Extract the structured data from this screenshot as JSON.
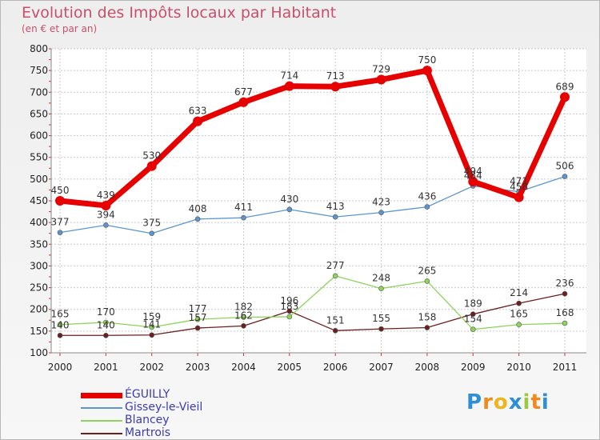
{
  "title": "Evolution des Impôts locaux par Habitant",
  "subtitle": "(en € et par an)",
  "logo": {
    "letters": [
      "P",
      "r",
      "o",
      "x",
      "i",
      "t",
      "i"
    ],
    "colors": [
      "#2e8fd6",
      "#f08a1c",
      "#f0b51c",
      "#2e8fd6",
      "#9acb3c",
      "#f08a1c",
      "#2e8fd6"
    ]
  },
  "chart_data": {
    "type": "line",
    "title": "Evolution des Impôts locaux par Habitant",
    "subtitle": "(en € et par an)",
    "x": [
      "2000",
      "2001",
      "2002",
      "2003",
      "2004",
      "2005",
      "2006",
      "2007",
      "2008",
      "2009",
      "2010",
      "2011"
    ],
    "ylim": [
      100,
      800
    ],
    "yticks": [
      100,
      150,
      200,
      250,
      300,
      350,
      400,
      450,
      500,
      550,
      600,
      650,
      700,
      750,
      800
    ],
    "grid": true,
    "legend_position": "bottom-left",
    "series": [
      {
        "name": "ÉGUILLY",
        "color": "#e60000",
        "values": [
          450,
          439,
          530,
          633,
          677,
          714,
          713,
          729,
          750,
          494,
          458,
          689
        ]
      },
      {
        "name": "Gissey-le-Vieil",
        "color": "#5b96cf",
        "values": [
          377,
          394,
          375,
          408,
          411,
          430,
          413,
          423,
          436,
          484,
          471,
          506
        ]
      },
      {
        "name": "Blancey",
        "color": "#8ed35c",
        "values": [
          165,
          170,
          159,
          177,
          182,
          183,
          277,
          248,
          265,
          154,
          165,
          168
        ]
      },
      {
        "name": "Martrois",
        "color": "#6b1f1f",
        "values": [
          140,
          140,
          141,
          157,
          162,
          196,
          151,
          155,
          158,
          189,
          214,
          236
        ]
      }
    ]
  }
}
